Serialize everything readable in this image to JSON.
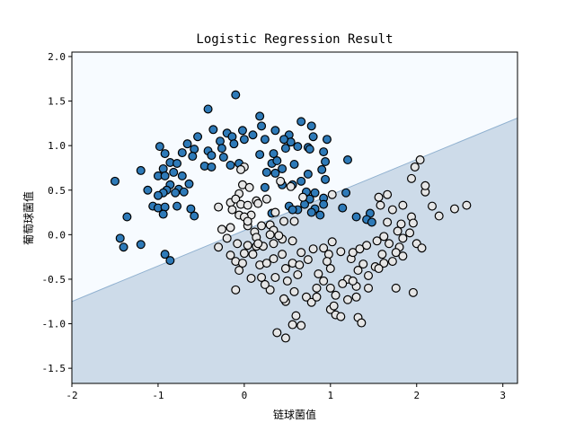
{
  "chart_data": {
    "type": "scatter",
    "title": "Logistic Regression Result",
    "xlabel": "链球菌值",
    "ylabel": "葡萄球菌值",
    "xlim": [
      -2.0,
      3.17
    ],
    "ylim": [
      -1.67,
      2.05
    ],
    "xticks": [
      "-2",
      "-1",
      "0",
      "1",
      "2",
      "3"
    ],
    "yticks": [
      "-1.5",
      "-1.0",
      "-0.5",
      "0.0",
      "0.5",
      "1.0",
      "1.5",
      "2.0"
    ],
    "grid": false,
    "legend": "none",
    "colors": {
      "class_0": "#2e7ab8",
      "class_1": "#e6e6e6",
      "region_0": "#f7fbff",
      "region_1": "#cddbe9",
      "edge": "#000000"
    },
    "decision_boundary": {
      "points": [
        [
          -2.0,
          -0.75
        ],
        [
          3.17,
          1.31
        ]
      ]
    },
    "series": [
      {
        "class": 0,
        "points": [
          [
            -0.1,
            1.57
          ],
          [
            -0.42,
            1.41
          ],
          [
            0.18,
            1.33
          ],
          [
            0.66,
            1.27
          ],
          [
            0.78,
            1.22
          ],
          [
            0.2,
            1.22
          ],
          [
            0.36,
            1.17
          ],
          [
            -0.36,
            1.18
          ],
          [
            -0.2,
            1.14
          ],
          [
            -0.02,
            1.17
          ],
          [
            0.1,
            1.12
          ],
          [
            0.52,
            1.12
          ],
          [
            0.54,
            1.04
          ],
          [
            0.8,
            1.1
          ],
          [
            0.96,
            1.07
          ],
          [
            0.24,
            1.07
          ],
          [
            0.46,
            1.07
          ],
          [
            -0.28,
            1.05
          ],
          [
            -0.54,
            1.1
          ],
          [
            -0.14,
            1.1
          ],
          [
            -0.66,
            1.02
          ],
          [
            -0.58,
            0.96
          ],
          [
            -0.98,
            0.99
          ],
          [
            -0.42,
            0.94
          ],
          [
            -0.26,
            0.97
          ],
          [
            -0.12,
            1.02
          ],
          [
            0.0,
            1.07
          ],
          [
            0.62,
            0.99
          ],
          [
            0.74,
            0.98
          ],
          [
            -0.6,
            0.88
          ],
          [
            -0.72,
            0.92
          ],
          [
            0.18,
            0.9
          ],
          [
            0.34,
            0.91
          ],
          [
            0.48,
            0.97
          ],
          [
            0.76,
            0.96
          ],
          [
            0.92,
            0.93
          ],
          [
            -0.92,
            0.91
          ],
          [
            -0.38,
            0.89
          ],
          [
            -0.24,
            0.87
          ],
          [
            -0.86,
            0.81
          ],
          [
            -0.78,
            0.8
          ],
          [
            -0.46,
            0.77
          ],
          [
            -0.38,
            0.76
          ],
          [
            -0.16,
            0.78
          ],
          [
            -0.06,
            0.8
          ],
          [
            0.32,
            0.8
          ],
          [
            0.58,
            0.79
          ],
          [
            0.94,
            0.82
          ],
          [
            1.2,
            0.84
          ],
          [
            -0.94,
            0.74
          ],
          [
            -0.82,
            0.7
          ],
          [
            0.38,
            0.83
          ],
          [
            0.44,
            0.74
          ],
          [
            -1.2,
            0.72
          ],
          [
            -1.0,
            0.66
          ],
          [
            -0.92,
            0.66
          ],
          [
            -0.72,
            0.66
          ],
          [
            -0.64,
            0.57
          ],
          [
            -0.86,
            0.56
          ],
          [
            -0.76,
            0.51
          ],
          [
            -0.9,
            0.5
          ],
          [
            0.26,
            0.7
          ],
          [
            0.36,
            0.69
          ],
          [
            0.74,
            0.68
          ],
          [
            0.9,
            0.73
          ],
          [
            -1.5,
            0.6
          ],
          [
            0.66,
            0.6
          ],
          [
            0.44,
            0.56
          ],
          [
            0.56,
            0.56
          ],
          [
            0.94,
            0.62
          ],
          [
            -1.12,
            0.5
          ],
          [
            -0.94,
            0.47
          ],
          [
            -0.8,
            0.47
          ],
          [
            -0.7,
            0.48
          ],
          [
            0.24,
            0.53
          ],
          [
            0.72,
            0.48
          ],
          [
            0.82,
            0.47
          ],
          [
            0.92,
            0.41
          ],
          [
            1.18,
            0.47
          ],
          [
            -1.0,
            0.44
          ],
          [
            0.76,
            0.4
          ],
          [
            0.7,
            0.34
          ],
          [
            0.52,
            0.32
          ],
          [
            0.62,
            0.28
          ],
          [
            0.82,
            0.29
          ],
          [
            0.92,
            0.34
          ],
          [
            -1.06,
            0.32
          ],
          [
            -1.0,
            0.3
          ],
          [
            -0.92,
            0.31
          ],
          [
            -0.78,
            0.32
          ],
          [
            -0.62,
            0.29
          ],
          [
            -0.94,
            0.23
          ],
          [
            -0.58,
            0.21
          ],
          [
            0.32,
            0.24
          ],
          [
            0.56,
            0.28
          ],
          [
            1.14,
            0.3
          ],
          [
            0.78,
            0.25
          ],
          [
            0.88,
            0.22
          ],
          [
            1.3,
            0.2
          ],
          [
            1.46,
            0.24
          ],
          [
            1.42,
            0.17
          ],
          [
            1.48,
            0.14
          ],
          [
            -1.36,
            0.2
          ],
          [
            -1.44,
            -0.04
          ],
          [
            -1.4,
            -0.14
          ],
          [
            -1.2,
            -0.11
          ],
          [
            -0.92,
            -0.22
          ],
          [
            -0.86,
            -0.29
          ]
        ]
      },
      {
        "class": 1,
        "points": [
          [
            1.98,
            0.76
          ],
          [
            2.04,
            0.84
          ],
          [
            0.0,
            0.76
          ],
          [
            -0.04,
            0.73
          ],
          [
            -0.02,
            0.56
          ],
          [
            0.06,
            0.53
          ],
          [
            -0.06,
            0.46
          ],
          [
            0.14,
            0.38
          ],
          [
            0.26,
            0.4
          ],
          [
            0.42,
            0.6
          ],
          [
            0.54,
            0.54
          ],
          [
            0.68,
            0.42
          ],
          [
            1.02,
            0.45
          ],
          [
            1.56,
            0.42
          ],
          [
            1.66,
            0.45
          ],
          [
            1.72,
            0.28
          ],
          [
            1.94,
            0.63
          ],
          [
            2.18,
            0.32
          ],
          [
            2.1,
            0.48
          ],
          [
            2.1,
            0.55
          ],
          [
            1.94,
            0.2
          ],
          [
            2.44,
            0.29
          ],
          [
            2.58,
            0.33
          ],
          [
            2.26,
            0.21
          ],
          [
            -0.3,
            0.31
          ],
          [
            -0.16,
            0.36
          ],
          [
            -0.1,
            0.4
          ],
          [
            -0.04,
            0.34
          ],
          [
            0.04,
            0.33
          ],
          [
            0.16,
            0.35
          ],
          [
            0.08,
            0.22
          ],
          [
            0.36,
            0.25
          ],
          [
            0.46,
            0.15
          ],
          [
            0.2,
            0.1
          ],
          [
            0.3,
            0.11
          ],
          [
            0.34,
            0.05
          ],
          [
            -0.14,
            0.28
          ],
          [
            -0.06,
            0.22
          ],
          [
            0.0,
            0.2
          ],
          [
            0.04,
            0.1
          ],
          [
            -0.16,
            0.08
          ],
          [
            -0.26,
            0.06
          ],
          [
            0.12,
            0.03
          ],
          [
            0.14,
            -0.03
          ],
          [
            -0.2,
            -0.04
          ],
          [
            -0.08,
            -0.1
          ],
          [
            0.04,
            -0.12
          ],
          [
            0.14,
            -0.13
          ],
          [
            0.22,
            -0.13
          ],
          [
            -0.3,
            -0.14
          ],
          [
            -0.16,
            -0.23
          ],
          [
            -0.1,
            -0.3
          ],
          [
            0.0,
            -0.21
          ],
          [
            0.1,
            -0.22
          ],
          [
            0.18,
            -0.34
          ],
          [
            0.26,
            -0.32
          ],
          [
            0.34,
            -0.27
          ],
          [
            0.44,
            -0.22
          ],
          [
            0.56,
            -0.32
          ],
          [
            0.48,
            -0.38
          ],
          [
            -0.02,
            -0.32
          ],
          [
            -0.06,
            -0.4
          ],
          [
            0.08,
            -0.49
          ],
          [
            0.2,
            -0.48
          ],
          [
            0.36,
            -0.48
          ],
          [
            0.64,
            -0.34
          ],
          [
            0.74,
            -0.28
          ],
          [
            0.66,
            -0.2
          ],
          [
            0.8,
            -0.16
          ],
          [
            0.92,
            -0.15
          ],
          [
            1.02,
            -0.08
          ],
          [
            0.98,
            -0.22
          ],
          [
            1.12,
            -0.19
          ],
          [
            1.24,
            -0.27
          ],
          [
            1.26,
            -0.2
          ],
          [
            1.34,
            -0.16
          ],
          [
            1.42,
            -0.12
          ],
          [
            1.54,
            -0.07
          ],
          [
            1.62,
            -0.02
          ],
          [
            1.68,
            -0.1
          ],
          [
            1.8,
            -0.14
          ],
          [
            1.76,
            -0.2
          ],
          [
            1.84,
            -0.24
          ],
          [
            1.72,
            -0.3
          ],
          [
            1.62,
            -0.32
          ],
          [
            1.52,
            -0.36
          ],
          [
            1.38,
            -0.33
          ],
          [
            1.32,
            -0.4
          ],
          [
            1.44,
            -0.46
          ],
          [
            1.2,
            -0.5
          ],
          [
            1.14,
            -0.55
          ],
          [
            1.0,
            -0.6
          ],
          [
            1.06,
            -0.68
          ],
          [
            1.2,
            -0.73
          ],
          [
            1.3,
            -0.7
          ],
          [
            1.44,
            -0.6
          ],
          [
            1.56,
            -0.38
          ],
          [
            1.6,
            -0.22
          ],
          [
            1.84,
            -0.04
          ],
          [
            1.92,
            0.02
          ],
          [
            1.96,
            0.13
          ],
          [
            1.82,
            0.12
          ],
          [
            1.78,
            0.04
          ],
          [
            1.66,
            0.14
          ],
          [
            1.58,
            0.33
          ],
          [
            1.84,
            0.33
          ],
          [
            2.0,
            -0.1
          ],
          [
            2.06,
            -0.15
          ],
          [
            0.58,
            0.15
          ],
          [
            0.56,
            -0.07
          ],
          [
            0.44,
            -0.05
          ],
          [
            0.34,
            -0.1
          ],
          [
            0.62,
            -0.45
          ],
          [
            0.5,
            -0.52
          ],
          [
            0.3,
            -0.62
          ],
          [
            0.24,
            -0.56
          ],
          [
            -0.1,
            -0.62
          ],
          [
            0.48,
            -0.75
          ],
          [
            0.46,
            -0.72
          ],
          [
            0.58,
            -0.64
          ],
          [
            0.72,
            -0.7
          ],
          [
            0.84,
            -0.6
          ],
          [
            0.92,
            -0.52
          ],
          [
            0.78,
            -0.76
          ],
          [
            0.6,
            -0.91
          ],
          [
            0.56,
            -1.01
          ],
          [
            0.66,
            -1.02
          ],
          [
            0.84,
            -0.7
          ],
          [
            1.0,
            -0.84
          ],
          [
            1.06,
            -0.9
          ],
          [
            1.04,
            -0.8
          ],
          [
            1.12,
            -0.92
          ],
          [
            1.32,
            -0.93
          ],
          [
            1.36,
            -0.99
          ],
          [
            0.38,
            -1.1
          ],
          [
            0.48,
            -1.16
          ],
          [
            1.76,
            -0.6
          ],
          [
            1.96,
            -0.65
          ],
          [
            1.0,
            -0.38
          ],
          [
            0.96,
            -0.3
          ],
          [
            0.86,
            -0.44
          ],
          [
            1.3,
            -0.58
          ],
          [
            1.26,
            -0.52
          ],
          [
            0.3,
            0.0
          ],
          [
            0.4,
            -0.01
          ],
          [
            0.16,
            -0.1
          ],
          [
            0.04,
            0.15
          ]
        ]
      }
    ]
  }
}
